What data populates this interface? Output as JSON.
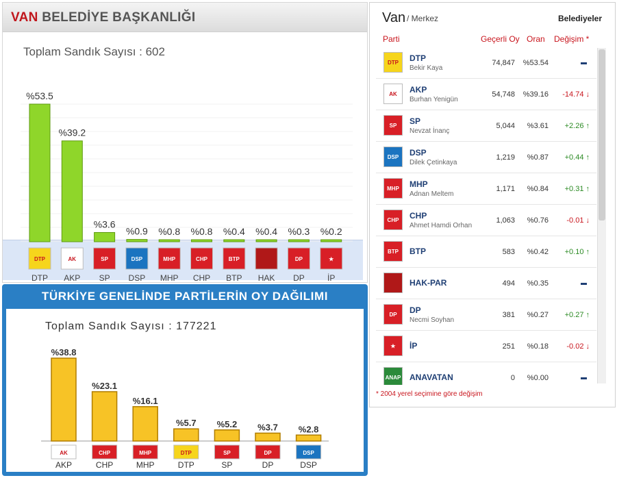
{
  "van_panel": {
    "title_city": "VAN",
    "title_rest": " BELEDİYE BAŞKANLIĞI",
    "subtitle": "Toplam Sandık Sayısı : 602"
  },
  "turkey_panel": {
    "title": "TÜRKİYE GENELİNDE PARTİLERİN OY DAĞILIMI",
    "subtitle": "Toplam Sandık Sayısı : 177221"
  },
  "results": {
    "city": "Van",
    "district": "/ Merkez",
    "type": "Belediyeler",
    "col_party": "Parti",
    "col_votes": "Geçerli Oy",
    "col_pct": "Oran",
    "col_change": "Değişim *",
    "note": "* 2004 yerel seçimine göre değişim",
    "rows": [
      {
        "party": "DTP",
        "candidate": "Bekir Kaya",
        "votes": "74,847",
        "pct": "%53.54",
        "change": "",
        "dir": "nil",
        "logo_color": "#f6d51c",
        "logo_text": "DTP"
      },
      {
        "party": "AKP",
        "candidate": "Burhan Yenigün",
        "votes": "54,748",
        "pct": "%39.16",
        "change": "-14.74",
        "dir": "down",
        "logo_color": "#ffffff",
        "logo_text": "AK"
      },
      {
        "party": "SP",
        "candidate": "Nevzat İnanç",
        "votes": "5,044",
        "pct": "%3.61",
        "change": "+2.26",
        "dir": "up",
        "logo_color": "#d81f26",
        "logo_text": "SP"
      },
      {
        "party": "DSP",
        "candidate": "Dilek Çetinkaya",
        "votes": "1,219",
        "pct": "%0.87",
        "change": "+0.44",
        "dir": "up",
        "logo_color": "#1b74c0",
        "logo_text": "DSP"
      },
      {
        "party": "MHP",
        "candidate": "Adnan Meltem",
        "votes": "1,171",
        "pct": "%0.84",
        "change": "+0.31",
        "dir": "up",
        "logo_color": "#d81f26",
        "logo_text": "MHP"
      },
      {
        "party": "CHP",
        "candidate": "Ahmet Hamdi Orhan",
        "votes": "1,063",
        "pct": "%0.76",
        "change": "-0.01",
        "dir": "down",
        "logo_color": "#d81f26",
        "logo_text": "CHP"
      },
      {
        "party": "BTP",
        "candidate": "",
        "votes": "583",
        "pct": "%0.42",
        "change": "+0.10",
        "dir": "up",
        "logo_color": "#d81f26",
        "logo_text": "BTP"
      },
      {
        "party": "HAK-PAR",
        "candidate": "",
        "votes": "494",
        "pct": "%0.35",
        "change": "",
        "dir": "nil",
        "logo_color": "#b01818",
        "logo_text": ""
      },
      {
        "party": "DP",
        "candidate": "Necmi Soyhan",
        "votes": "381",
        "pct": "%0.27",
        "change": "+0.27",
        "dir": "up",
        "logo_color": "#d81f26",
        "logo_text": "DP"
      },
      {
        "party": "İP",
        "candidate": "",
        "votes": "251",
        "pct": "%0.18",
        "change": "-0.02",
        "dir": "down",
        "logo_color": "#d81f26",
        "logo_text": "★"
      },
      {
        "party": "ANAVATAN",
        "candidate": "",
        "votes": "0",
        "pct": "%0.00",
        "change": "",
        "dir": "nil",
        "logo_color": "#2b8a3a",
        "logo_text": "ANAP"
      }
    ]
  },
  "chart_data": [
    {
      "type": "bar",
      "title": "VAN BELEDİYE BAŞKANLIĞI",
      "categories": [
        "DTP",
        "AKP",
        "SP",
        "DSP",
        "MHP",
        "CHP",
        "BTP",
        "HAK",
        "DP",
        "İP"
      ],
      "values": [
        53.5,
        39.2,
        3.6,
        0.9,
        0.8,
        0.8,
        0.4,
        0.4,
        0.3,
        0.2
      ],
      "labels": [
        "%53.5",
        "%39.2",
        "%3.6",
        "%0.9",
        "%0.8",
        "%0.8",
        "%0.4",
        "%0.4",
        "%0.3",
        "%0.2"
      ],
      "bar_color": "#8fd62a",
      "icon_colors": [
        "#f6d51c",
        "#ffffff",
        "#d81f26",
        "#1b74c0",
        "#d81f26",
        "#d81f26",
        "#d81f26",
        "#b01818",
        "#d81f26",
        "#d81f26"
      ],
      "icon_text": [
        "DTP",
        "AK",
        "SP",
        "DSP",
        "MHP",
        "CHP",
        "BTP",
        "",
        "DP",
        "★"
      ]
    },
    {
      "type": "bar",
      "title": "TÜRKİYE GENELİNDE PARTİLERİN OY DAĞILIMI",
      "categories": [
        "AKP",
        "CHP",
        "MHP",
        "DTP",
        "SP",
        "DP",
        "DSP"
      ],
      "values": [
        38.8,
        23.1,
        16.1,
        5.7,
        5.2,
        3.7,
        2.8
      ],
      "labels": [
        "%38.8",
        "%23.1",
        "%16.1",
        "%5.7",
        "%5.2",
        "%3.7",
        "%2.8"
      ],
      "bar_color": "#f7c326",
      "icon_colors": [
        "#ffffff",
        "#d81f26",
        "#d81f26",
        "#f6d51c",
        "#d81f26",
        "#d81f26",
        "#1b74c0"
      ],
      "icon_text": [
        "AK",
        "CHP",
        "MHP",
        "DTP",
        "SP",
        "DP",
        "DSP"
      ]
    }
  ]
}
